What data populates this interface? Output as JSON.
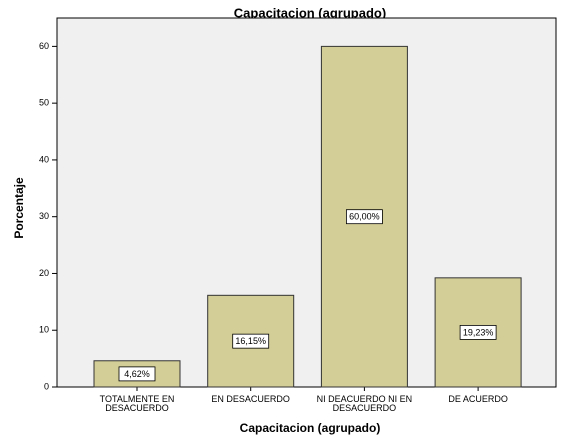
{
  "chart_data": {
    "type": "bar",
    "title": "Capacitacion  (agrupado)",
    "x_label": "Capacitacion  (agrupado)",
    "y_label": "Porcentaje",
    "categories": [
      "TOTALMENTE EN DESACUERDO",
      "EN DESACUERDO",
      "NI DEACUERDO NI EN DESACUERDO",
      "DE ACUERDO"
    ],
    "values": [
      4.62,
      16.15,
      60.0,
      19.23
    ],
    "value_labels": [
      "4,62%",
      "16,15%",
      "60,00%",
      "19,23%"
    ],
    "color": "#d3ce97",
    "ylim": [
      0,
      65
    ],
    "yticks": [
      0,
      10,
      20,
      30,
      40,
      50,
      60
    ]
  }
}
